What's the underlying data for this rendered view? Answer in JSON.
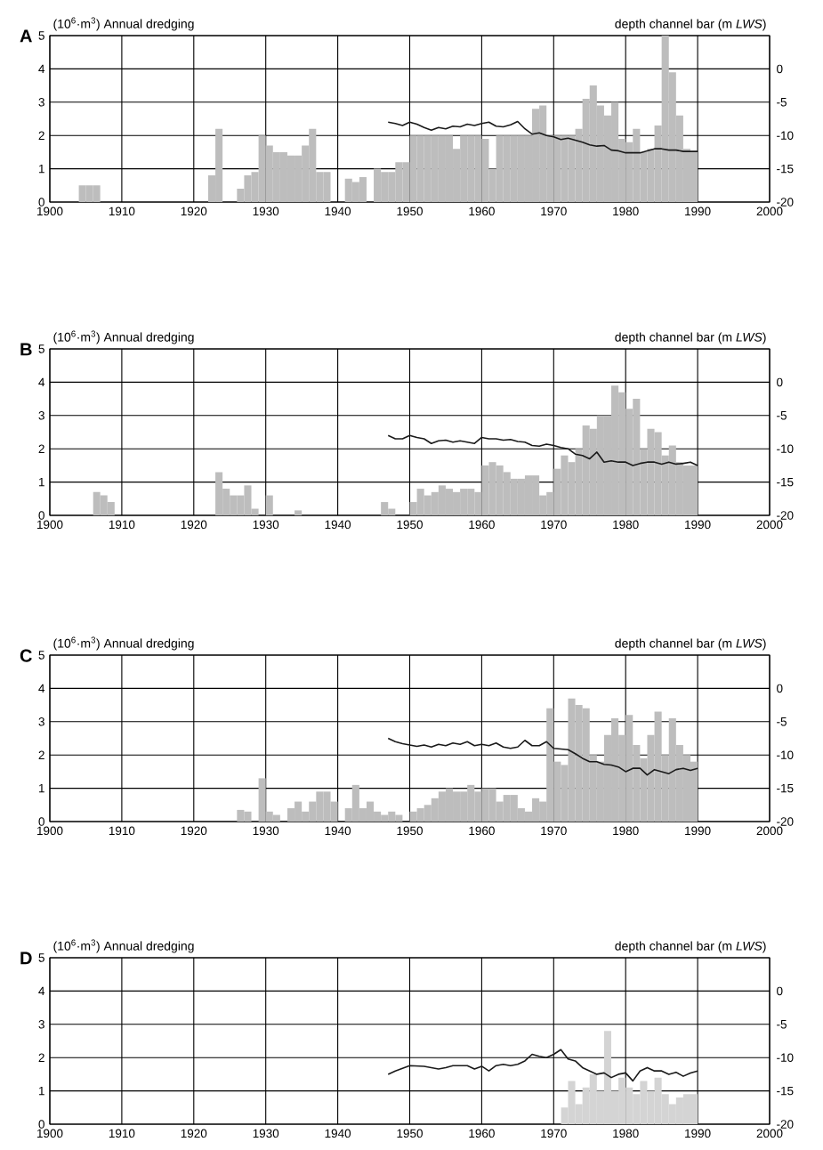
{
  "chart_data": [
    {
      "type": "bar",
      "title": "A",
      "ylabel": "(10$^{6}$·m$^{3}$) Annual dredging",
      "y2label": "depth channel bar (m *LWS*)",
      "xlim": [
        1900,
        2000
      ],
      "xticks": [
        1900,
        1910,
        1920,
        1930,
        1940,
        1950,
        1960,
        1970,
        1980,
        1990,
        2000
      ],
      "ylim": [
        0,
        5
      ],
      "yticks": [
        0,
        1,
        2,
        3,
        4,
        5
      ],
      "y2lim": [
        -20,
        5
      ],
      "y2ticks": [
        -20,
        -15,
        -10,
        -5,
        0
      ],
      "grid": true,
      "series": [
        {
          "color": "#bdbdbd",
          "x": [
            1904,
            1905,
            1906,
            1922,
            1923,
            1926,
            1927,
            1928,
            1929,
            1930,
            1931,
            1932,
            1933,
            1934,
            1935,
            1936,
            1937,
            1938,
            1941,
            1942,
            1943,
            1945,
            1946,
            1947,
            1948,
            1949,
            1950,
            1951,
            1952,
            1953,
            1954,
            1955,
            1956,
            1957,
            1958,
            1959,
            1960,
            1961,
            1962,
            1963,
            1964,
            1965,
            1966,
            1967,
            1968,
            1969,
            1970,
            1971,
            1972,
            1973,
            1974,
            1975,
            1976,
            1977,
            1978,
            1979,
            1980,
            1981,
            1982,
            1983,
            1984,
            1985,
            1986,
            1987,
            1988,
            1989
          ],
          "values": [
            0.5,
            0.5,
            0.5,
            0.8,
            2.2,
            0.4,
            0.8,
            0.9,
            2.0,
            1.7,
            1.5,
            1.5,
            1.4,
            1.4,
            1.7,
            2.2,
            0.9,
            0.9,
            0.7,
            0.6,
            0.75,
            1.0,
            0.9,
            0.9,
            1.2,
            1.2,
            2.0,
            2.0,
            2.0,
            2.0,
            2.0,
            2.0,
            1.6,
            2.0,
            2.0,
            2.0,
            1.9,
            1.0,
            2.0,
            2.0,
            2.0,
            2.0,
            2.0,
            2.8,
            2.9,
            2.0,
            2.0,
            2.0,
            2.0,
            2.2,
            3.1,
            3.5,
            2.9,
            2.6,
            3.0,
            1.9,
            1.8,
            2.2,
            1.5,
            1.6,
            2.3,
            5.0,
            3.9,
            2.6,
            1.6,
            1.5
          ]
        },
        {
          "type": "line",
          "axis": "y2",
          "color": "#1a1a1a",
          "x": [
            1947,
            1948,
            1949,
            1950,
            1951,
            1952,
            1953,
            1954,
            1955,
            1956,
            1957,
            1958,
            1959,
            1960,
            1961,
            1962,
            1963,
            1964,
            1965,
            1966,
            1967,
            1968,
            1969,
            1970,
            1971,
            1972,
            1973,
            1974,
            1975,
            1976,
            1977,
            1978,
            1979,
            1980,
            1981,
            1982,
            1983,
            1984,
            1985,
            1986,
            1987,
            1988,
            1989,
            1990
          ],
          "values": [
            -8.0,
            -8.2,
            -8.5,
            -8.0,
            -8.3,
            -8.8,
            -9.2,
            -8.8,
            -9.0,
            -8.6,
            -8.7,
            -8.3,
            -8.5,
            -8.2,
            -8.0,
            -8.6,
            -8.7,
            -8.4,
            -7.9,
            -9.0,
            -9.8,
            -9.6,
            -10.0,
            -10.2,
            -10.6,
            -10.4,
            -10.7,
            -11.0,
            -11.4,
            -11.6,
            -11.5,
            -12.2,
            -12.3,
            -12.6,
            -12.6,
            -12.6,
            -12.3,
            -12.0,
            -12.0,
            -12.2,
            -12.2,
            -12.4,
            -12.4,
            -12.4
          ]
        }
      ]
    },
    {
      "type": "bar",
      "title": "B",
      "ylabel": "(10$^{6}$·m$^{3}$) Annual dredging",
      "y2label": "depth channel bar (m *LWS*)",
      "xlim": [
        1900,
        2000
      ],
      "xticks": [
        1900,
        1910,
        1920,
        1930,
        1940,
        1950,
        1960,
        1970,
        1980,
        1990,
        2000
      ],
      "ylim": [
        0,
        5
      ],
      "yticks": [
        0,
        1,
        2,
        3,
        4,
        5
      ],
      "y2lim": [
        -20,
        5
      ],
      "y2ticks": [
        -20,
        -15,
        -10,
        -5,
        0
      ],
      "grid": true,
      "series": [
        {
          "color": "#bdbdbd",
          "x": [
            1906,
            1907,
            1908,
            1923,
            1924,
            1925,
            1926,
            1927,
            1928,
            1930,
            1934,
            1946,
            1947,
            1950,
            1951,
            1952,
            1953,
            1954,
            1955,
            1956,
            1957,
            1958,
            1959,
            1960,
            1961,
            1962,
            1963,
            1964,
            1965,
            1966,
            1967,
            1968,
            1969,
            1970,
            1971,
            1972,
            1973,
            1974,
            1975,
            1976,
            1977,
            1978,
            1979,
            1980,
            1981,
            1982,
            1983,
            1984,
            1985,
            1986,
            1987,
            1988,
            1989
          ],
          "values": [
            0.7,
            0.6,
            0.4,
            1.3,
            0.8,
            0.6,
            0.6,
            0.9,
            0.2,
            0.6,
            0.15,
            0.4,
            0.2,
            0.4,
            0.8,
            0.6,
            0.7,
            0.9,
            0.8,
            0.7,
            0.8,
            0.8,
            0.7,
            1.5,
            1.6,
            1.5,
            1.3,
            1.1,
            1.1,
            1.2,
            1.2,
            0.6,
            0.7,
            1.4,
            1.8,
            1.6,
            2.0,
            2.7,
            2.6,
            3.0,
            3.0,
            3.9,
            3.7,
            3.2,
            3.5,
            2.0,
            2.6,
            2.5,
            1.8,
            2.1,
            1.6,
            1.5,
            1.5
          ]
        },
        {
          "type": "line",
          "axis": "y2",
          "color": "#1a1a1a",
          "x": [
            1947,
            1948,
            1949,
            1950,
            1951,
            1952,
            1953,
            1954,
            1955,
            1956,
            1957,
            1958,
            1959,
            1960,
            1961,
            1962,
            1963,
            1964,
            1965,
            1966,
            1967,
            1968,
            1969,
            1970,
            1971,
            1972,
            1973,
            1974,
            1975,
            1976,
            1977,
            1978,
            1979,
            1980,
            1981,
            1982,
            1983,
            1984,
            1985,
            1986,
            1987,
            1988,
            1989,
            1990
          ],
          "values": [
            -8.0,
            -8.5,
            -8.5,
            -8.0,
            -8.3,
            -8.5,
            -9.2,
            -8.8,
            -8.7,
            -9.0,
            -8.8,
            -9.0,
            -9.2,
            -8.3,
            -8.5,
            -8.5,
            -8.7,
            -8.6,
            -8.9,
            -9.0,
            -9.5,
            -9.6,
            -9.3,
            -9.5,
            -9.8,
            -10.0,
            -10.8,
            -11.0,
            -11.5,
            -10.5,
            -12.0,
            -11.8,
            -12.0,
            -12.0,
            -12.5,
            -12.2,
            -12.0,
            -12.0,
            -12.3,
            -12.0,
            -12.3,
            -12.2,
            -12.0,
            -12.5
          ]
        }
      ]
    },
    {
      "type": "bar",
      "title": "C",
      "ylabel": "(10$^{6}$·m$^{3}$) Annual dredging",
      "y2label": "depth channel bar (m *LWS*)",
      "xlim": [
        1900,
        2000
      ],
      "xticks": [
        1900,
        1910,
        1920,
        1930,
        1940,
        1950,
        1960,
        1970,
        1980,
        1990,
        2000
      ],
      "ylim": [
        0,
        5
      ],
      "yticks": [
        0,
        1,
        2,
        3,
        4,
        5
      ],
      "y2lim": [
        -20,
        5
      ],
      "y2ticks": [
        -20,
        -15,
        -10,
        -5,
        0
      ],
      "grid": true,
      "series": [
        {
          "color": "#bdbdbd",
          "x": [
            1926,
            1927,
            1929,
            1930,
            1931,
            1933,
            1934,
            1935,
            1936,
            1937,
            1938,
            1939,
            1941,
            1942,
            1943,
            1944,
            1945,
            1946,
            1947,
            1948,
            1950,
            1951,
            1952,
            1953,
            1954,
            1955,
            1956,
            1957,
            1958,
            1959,
            1960,
            1961,
            1962,
            1963,
            1964,
            1965,
            1966,
            1967,
            1968,
            1969,
            1970,
            1971,
            1972,
            1973,
            1974,
            1975,
            1976,
            1977,
            1978,
            1979,
            1980,
            1981,
            1982,
            1983,
            1984,
            1985,
            1986,
            1987,
            1988,
            1989
          ],
          "values": [
            0.35,
            0.3,
            1.3,
            0.3,
            0.2,
            0.4,
            0.6,
            0.3,
            0.6,
            0.9,
            0.9,
            0.6,
            0.4,
            1.1,
            0.4,
            0.6,
            0.3,
            0.2,
            0.3,
            0.2,
            0.3,
            0.4,
            0.5,
            0.7,
            0.9,
            1.0,
            0.9,
            0.9,
            1.1,
            0.9,
            1.0,
            1.0,
            0.6,
            0.8,
            0.8,
            0.4,
            0.3,
            0.7,
            0.6,
            3.4,
            1.8,
            1.7,
            3.7,
            3.5,
            3.4,
            2.0,
            1.8,
            2.6,
            3.1,
            2.6,
            3.2,
            2.3,
            1.9,
            2.6,
            3.3,
            2.0,
            3.1,
            2.3,
            2.0,
            1.8
          ]
        },
        {
          "type": "line",
          "axis": "y2",
          "color": "#1a1a1a",
          "x": [
            1947,
            1948,
            1949,
            1950,
            1951,
            1952,
            1953,
            1954,
            1955,
            1956,
            1957,
            1958,
            1959,
            1960,
            1961,
            1962,
            1963,
            1964,
            1965,
            1966,
            1967,
            1968,
            1969,
            1970,
            1971,
            1972,
            1973,
            1974,
            1975,
            1976,
            1977,
            1978,
            1979,
            1980,
            1981,
            1982,
            1983,
            1984,
            1985,
            1986,
            1987,
            1988,
            1989,
            1990
          ],
          "values": [
            -7.5,
            -8.0,
            -8.3,
            -8.5,
            -8.7,
            -8.5,
            -8.8,
            -8.4,
            -8.6,
            -8.2,
            -8.4,
            -8.0,
            -8.6,
            -8.4,
            -8.6,
            -8.2,
            -8.8,
            -9.0,
            -8.8,
            -7.8,
            -8.6,
            -8.6,
            -8.0,
            -9.0,
            -9.1,
            -9.2,
            -9.8,
            -10.5,
            -11.0,
            -11.0,
            -11.4,
            -11.5,
            -11.8,
            -12.5,
            -12.0,
            -12.0,
            -13.0,
            -12.2,
            -12.5,
            -12.8,
            -12.2,
            -12.0,
            -12.3,
            -12.0
          ]
        }
      ]
    },
    {
      "type": "bar",
      "title": "D",
      "ylabel": "(10$^{6}$·m$^{3}$) Annual dredging",
      "y2label": "depth channel bar (m *LWS*)",
      "xlim": [
        1900,
        2000
      ],
      "xticks": [
        1900,
        1910,
        1920,
        1930,
        1940,
        1950,
        1960,
        1970,
        1980,
        1990,
        2000
      ],
      "ylim": [
        0,
        5
      ],
      "yticks": [
        0,
        1,
        2,
        3,
        4,
        5
      ],
      "y2lim": [
        -20,
        5
      ],
      "y2ticks": [
        -20,
        -15,
        -10,
        -5,
        0
      ],
      "grid": true,
      "series": [
        {
          "color": "#d4d4d4",
          "x": [
            1971,
            1972,
            1973,
            1974,
            1975,
            1976,
            1977,
            1978,
            1979,
            1980,
            1981,
            1982,
            1983,
            1984,
            1985,
            1986,
            1987,
            1988,
            1989
          ],
          "values": [
            0.5,
            1.3,
            0.6,
            1.1,
            1.5,
            1.0,
            2.8,
            1.0,
            1.4,
            1.1,
            0.9,
            1.3,
            1.0,
            1.4,
            0.9,
            0.6,
            0.8,
            0.9,
            0.9
          ]
        },
        {
          "type": "line",
          "axis": "y2",
          "color": "#1a1a1a",
          "x": [
            1947,
            1948,
            1950,
            1952,
            1954,
            1955,
            1956,
            1958,
            1959,
            1960,
            1961,
            1962,
            1963,
            1964,
            1965,
            1966,
            1967,
            1968,
            1969,
            1970,
            1971,
            1972,
            1973,
            1974,
            1975,
            1976,
            1977,
            1978,
            1979,
            1980,
            1981,
            1982,
            1983,
            1984,
            1985,
            1986,
            1987,
            1988,
            1989,
            1990
          ],
          "values": [
            -12.5,
            -12.0,
            -11.2,
            -11.3,
            -11.7,
            -11.5,
            -11.2,
            -11.2,
            -11.7,
            -11.3,
            -12.0,
            -11.2,
            -11.0,
            -11.2,
            -11.0,
            -10.5,
            -9.5,
            -9.8,
            -10.0,
            -9.5,
            -8.8,
            -10.2,
            -10.5,
            -11.5,
            -12.0,
            -12.5,
            -12.3,
            -13.0,
            -12.5,
            -12.3,
            -13.5,
            -12.0,
            -11.5,
            -12.0,
            -12.0,
            -12.5,
            -12.2,
            -12.8,
            -12.3,
            -12.0
          ]
        }
      ]
    }
  ]
}
